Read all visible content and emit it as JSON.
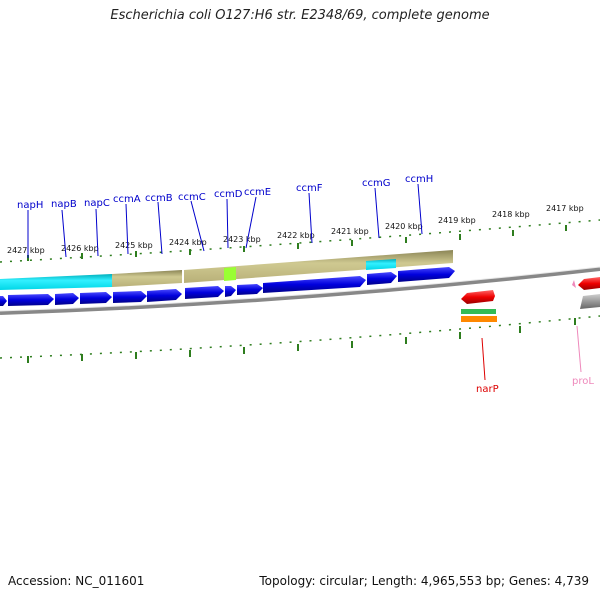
{
  "title": "Escherichia coli O127:H6 str. E2348/69, complete genome",
  "footer": {
    "accession": "Accession: NC_011601",
    "topology": "Topology: circular; Length: 4,965,553 bp; Genes: 4,739"
  },
  "colors": {
    "cds": "#0000dd",
    "rna": "#ff0000",
    "pseudo": "#ee88bb",
    "tick": "#2e7d1e",
    "backbone": "#777777",
    "cyan": "#00e5ee",
    "khaki": "#bdb67a",
    "lime": "#99ff33",
    "orange": "#ff8800"
  },
  "scale_labels": [
    "2427 kbp",
    "2426 kbp",
    "2425 kbp",
    "2424 kbp",
    "2423 kbp",
    "2422 kbp",
    "2421 kbp",
    "2420 kbp",
    "2419 kbp",
    "2418 kbp",
    "2417 kbp"
  ],
  "upper_genes": [
    "napH",
    "napB",
    "napC",
    "ccmA",
    "ccmB",
    "ccmC",
    "ccmD",
    "ccmE",
    "ccmF",
    "ccmG",
    "ccmH"
  ],
  "lower_genes": [
    {
      "name": "narP",
      "color": "#dd0000"
    },
    {
      "name": "proL",
      "color": "#ee88bb"
    }
  ]
}
